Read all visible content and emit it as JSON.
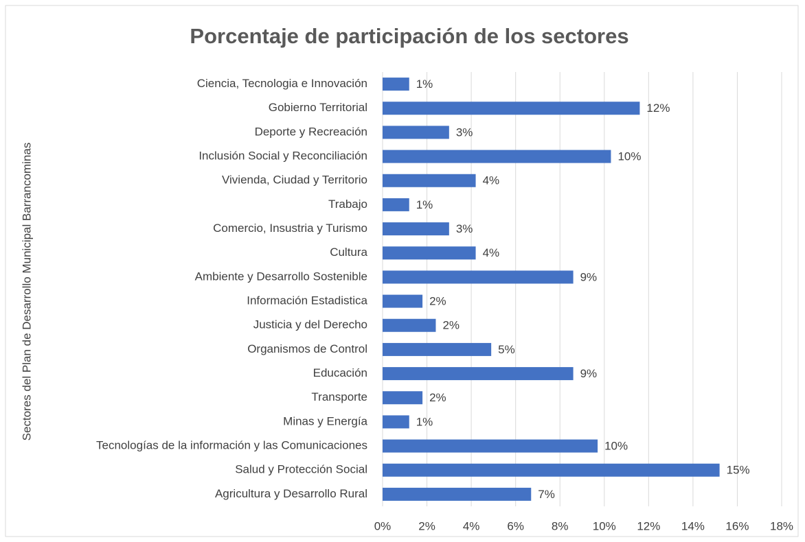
{
  "chart_data": {
    "type": "barh",
    "title": "Porcentaje de participación de los sectores",
    "y_label": "Sectores del Plan de Desarrollo Municipal Barrancominas",
    "categories": [
      "Ciencia, Tecnologia e Innovación",
      "Gobierno Territorial",
      "Deporte y Recreación",
      "Inclusión Social y Reconciliación",
      "Vivienda, Ciudad y Territorio",
      "Trabajo",
      "Comercio, Insustria y Turismo",
      "Cultura",
      "Ambiente y Desarrollo Sostenible",
      "Información Estadistica",
      "Justicia y del Derecho",
      "Organismos de Control",
      "Educación",
      "Transporte",
      "Minas y Energía",
      "Tecnologías de la información y las Comunicaciones",
      "Salud y Protección Social",
      "Agricultura y Desarrollo Rural"
    ],
    "values": [
      1.2,
      11.6,
      3.0,
      10.3,
      4.2,
      1.2,
      3.0,
      4.2,
      8.6,
      1.8,
      2.4,
      4.9,
      8.6,
      1.8,
      1.2,
      9.7,
      15.2,
      6.7
    ],
    "value_labels": [
      "1%",
      "12%",
      "3%",
      "10%",
      "4%",
      "1%",
      "3%",
      "4%",
      "9%",
      "2%",
      "2%",
      "5%",
      "9%",
      "2%",
      "1%",
      "10%",
      "15%",
      "7%"
    ],
    "color": "#4472c4",
    "xlim": [
      0,
      18
    ],
    "xticks": [
      {
        "value": 0,
        "label": "0%"
      },
      {
        "value": 2,
        "label": "2%"
      },
      {
        "value": 4,
        "label": "4%"
      },
      {
        "value": 6,
        "label": "6%"
      },
      {
        "value": 8,
        "label": "8%"
      },
      {
        "value": 10,
        "label": "10%"
      },
      {
        "value": 12,
        "label": "12%"
      },
      {
        "value": 14,
        "label": "14%"
      },
      {
        "value": 16,
        "label": "16%"
      },
      {
        "value": 18,
        "label": "18%"
      }
    ],
    "grid": true
  }
}
